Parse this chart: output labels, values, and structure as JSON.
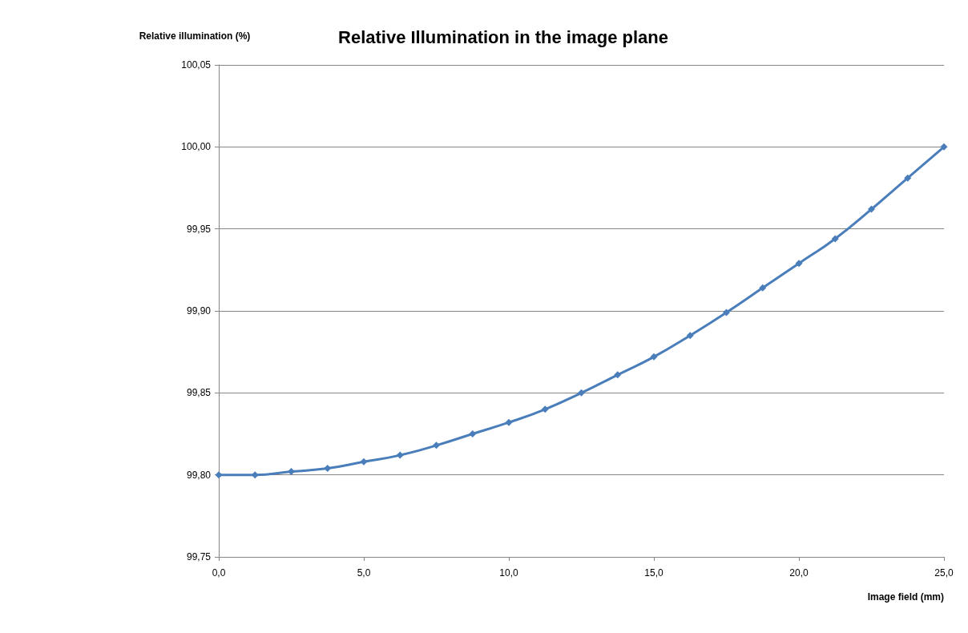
{
  "chart_data": {
    "type": "line",
    "title": "Relative Illumination in the image plane",
    "xlabel": "Image field (mm)",
    "ylabel": "Relative illumination (%)",
    "x": [
      0,
      1.25,
      2.5,
      3.75,
      5,
      6.25,
      7.5,
      8.75,
      10,
      11.25,
      12.5,
      13.75,
      15,
      16.25,
      17.5,
      18.75,
      20,
      21.25,
      22.5,
      23.75,
      25
    ],
    "series": [
      {
        "color": "#4a7ebb",
        "values": [
          99.8,
          99.8,
          99.802,
          99.804,
          99.808,
          99.812,
          99.818,
          99.825,
          99.832,
          99.84,
          99.85,
          99.861,
          99.872,
          99.885,
          99.899,
          99.914,
          99.929,
          99.944,
          99.962,
          99.981,
          100.0
        ]
      }
    ],
    "xlim": [
      0,
      25
    ],
    "ylim": [
      99.75,
      100.05
    ],
    "xticks": [
      {
        "value": 0,
        "label": "0,0"
      },
      {
        "value": 5,
        "label": "5,0"
      },
      {
        "value": 10,
        "label": "10,0"
      },
      {
        "value": 15,
        "label": "15,0"
      },
      {
        "value": 20,
        "label": "20,0"
      },
      {
        "value": 25,
        "label": "25,0"
      }
    ],
    "yticks": [
      {
        "value": 99.75,
        "label": "99,75"
      },
      {
        "value": 99.8,
        "label": "99,80"
      },
      {
        "value": 99.85,
        "label": "99,85"
      },
      {
        "value": 99.9,
        "label": "99,90"
      },
      {
        "value": 99.95,
        "label": "99,95"
      },
      {
        "value": 100,
        "label": "100,00"
      },
      {
        "value": 100.05,
        "label": "100,05"
      }
    ],
    "grid": "y",
    "marker": "diamond",
    "line_style": "solid"
  }
}
